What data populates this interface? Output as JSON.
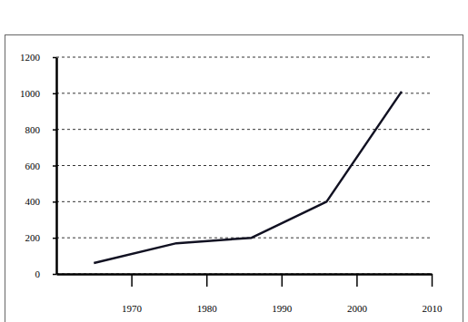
{
  "chart_data": {
    "type": "line",
    "x": [
      1965,
      1976,
      1986,
      1996,
      2006
    ],
    "values": [
      60,
      170,
      200,
      400,
      1010
    ],
    "color": "#111122",
    "xlim": [
      1960,
      2010
    ],
    "xticks": [
      1970,
      1980,
      1990,
      2000,
      2010
    ],
    "ylim": [
      0,
      1200
    ],
    "yticks": [
      0,
      200,
      400,
      600,
      800,
      1000,
      1200
    ],
    "grid": true
  }
}
